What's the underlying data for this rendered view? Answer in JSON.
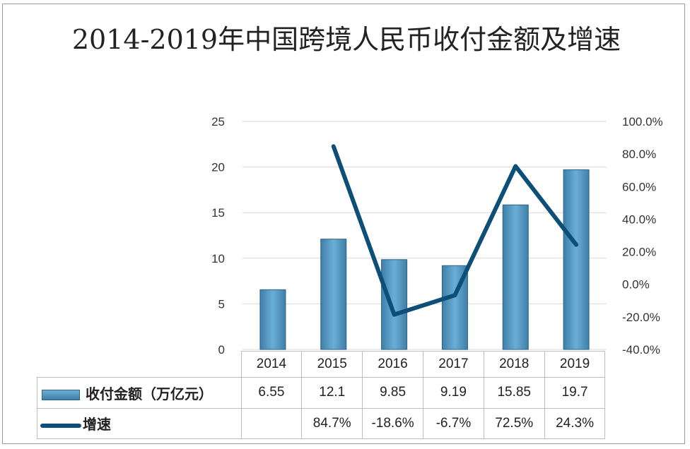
{
  "chart_data": {
    "type": "bar+line",
    "title": "2014-2019年中国跨境人民币收付金额及增速",
    "categories": [
      "2014",
      "2015",
      "2016",
      "2017",
      "2018",
      "2019"
    ],
    "series": [
      {
        "name": "收付金额（万亿元）",
        "type": "bar",
        "axis": "left",
        "values": [
          6.55,
          12.1,
          9.85,
          9.19,
          15.85,
          19.7
        ],
        "labels": [
          "6.55",
          "12.1",
          "9.85",
          "9.19",
          "15.85",
          "19.7"
        ],
        "color": "#5b9bc4"
      },
      {
        "name": "增速",
        "type": "line",
        "axis": "right",
        "values": [
          null,
          84.7,
          -18.6,
          -6.7,
          72.5,
          24.3
        ],
        "labels": [
          "",
          "84.7%",
          "-18.6%",
          "-6.7%",
          "72.5%",
          "24.3%"
        ],
        "color": "#0e4f77"
      }
    ],
    "left_axis": {
      "ylim": [
        0,
        25
      ],
      "ticks": [
        "0",
        "5",
        "10",
        "15",
        "20",
        "25"
      ]
    },
    "right_axis": {
      "ylim": [
        -40,
        100
      ],
      "ticks": [
        "-40.0%",
        "-20.0%",
        "0.0%",
        "20.0%",
        "40.0%",
        "60.0%",
        "80.0%",
        "100.0%"
      ]
    },
    "grid": true,
    "legend": "data-table-bottom"
  }
}
